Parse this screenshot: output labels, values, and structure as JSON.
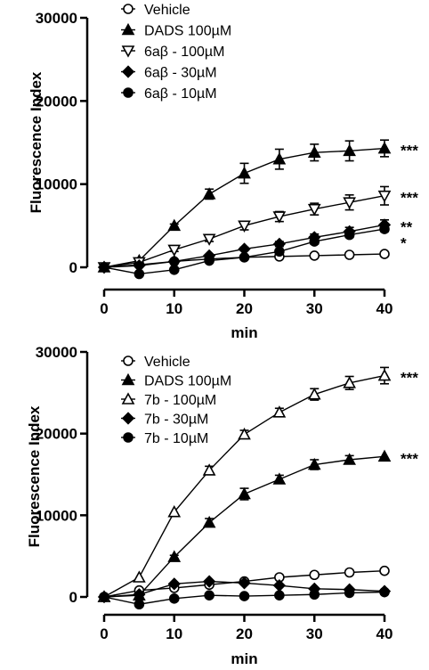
{
  "chart_data": [
    {
      "type": "line",
      "xlabel": "min",
      "ylabel": "Fluorescence Index",
      "xlim": [
        0,
        40
      ],
      "ylim": [
        0,
        30000
      ],
      "x": [
        0,
        5,
        10,
        15,
        20,
        25,
        30,
        35,
        40
      ],
      "x_ticks": [
        "0",
        "10",
        "20",
        "30",
        "40"
      ],
      "y_ticks": [
        "0",
        "10000",
        "20000",
        "30000"
      ],
      "legend_position": "top-left",
      "series": [
        {
          "name": "Vehicle",
          "marker": "open-circle",
          "values": [
            0,
            300,
            700,
            1000,
            1200,
            1300,
            1400,
            1500,
            1600
          ],
          "errors": [
            0,
            0,
            0,
            0,
            0,
            0,
            0,
            0,
            0
          ],
          "significance": ""
        },
        {
          "name": "DADS 100µM",
          "marker": "filled-triangle-up",
          "values": [
            0,
            800,
            5000,
            8800,
            11300,
            13000,
            13800,
            14000,
            14300
          ],
          "errors": [
            0,
            100,
            200,
            600,
            1200,
            1200,
            1000,
            1200,
            1000
          ],
          "significance": "***"
        },
        {
          "name": "6aβ - 100µM",
          "marker": "open-triangle-down",
          "values": [
            0,
            600,
            2100,
            3400,
            5000,
            6100,
            7000,
            7800,
            8600
          ],
          "errors": [
            0,
            100,
            200,
            300,
            500,
            600,
            700,
            900,
            1100
          ],
          "significance": "***"
        },
        {
          "name": "6aβ - 30µM",
          "marker": "filled-diamond",
          "values": [
            0,
            200,
            700,
            1400,
            2200,
            2800,
            3600,
            4300,
            5100
          ],
          "errors": [
            0,
            0,
            0,
            0,
            200,
            300,
            400,
            500,
            600
          ],
          "significance": "**"
        },
        {
          "name": "6aβ - 10µM",
          "marker": "filled-circle",
          "values": [
            0,
            -800,
            -300,
            800,
            1200,
            1900,
            3100,
            3900,
            4600
          ],
          "errors": [
            0,
            0,
            0,
            0,
            0,
            0,
            300,
            300,
            300
          ],
          "significance": "*"
        }
      ]
    },
    {
      "type": "line",
      "xlabel": "min",
      "ylabel": "Fluorescence Index",
      "xlim": [
        0,
        40
      ],
      "ylim": [
        0,
        30000
      ],
      "x": [
        0,
        5,
        10,
        15,
        20,
        25,
        30,
        35,
        40
      ],
      "x_ticks": [
        "0",
        "10",
        "20",
        "30",
        "40"
      ],
      "y_ticks": [
        "0",
        "10000",
        "20000",
        "30000"
      ],
      "legend_position": "top-left",
      "series": [
        {
          "name": "Vehicle",
          "marker": "open-circle",
          "values": [
            0,
            800,
            1100,
            1500,
            1900,
            2400,
            2700,
            3000,
            3200
          ],
          "errors": [
            0,
            0,
            0,
            0,
            0,
            0,
            0,
            0,
            0
          ],
          "significance": ""
        },
        {
          "name": "DADS 100µM",
          "marker": "filled-triangle-up",
          "values": [
            0,
            200,
            4900,
            9100,
            12600,
            14400,
            16200,
            16800,
            17200
          ],
          "errors": [
            0,
            0,
            200,
            500,
            700,
            500,
            600,
            500,
            0
          ],
          "significance": "***"
        },
        {
          "name": "7b - 100µM",
          "marker": "open-triangle-up",
          "values": [
            0,
            2400,
            10400,
            15500,
            19900,
            22600,
            24800,
            26200,
            27100
          ],
          "errors": [
            0,
            0,
            0,
            500,
            500,
            500,
            700,
            800,
            1000
          ],
          "significance": "***"
        },
        {
          "name": "7b - 30µM",
          "marker": "filled-diamond",
          "values": [
            0,
            300,
            1600,
            1900,
            1700,
            1400,
            1000,
            900,
            700
          ],
          "errors": [
            0,
            0,
            0,
            0,
            0,
            0,
            0,
            0,
            0
          ],
          "significance": ""
        },
        {
          "name": "7b - 10µM",
          "marker": "filled-circle",
          "values": [
            0,
            -900,
            -200,
            200,
            100,
            200,
            300,
            500,
            600
          ],
          "errors": [
            0,
            0,
            0,
            0,
            0,
            0,
            0,
            0,
            0
          ],
          "significance": ""
        }
      ]
    }
  ]
}
